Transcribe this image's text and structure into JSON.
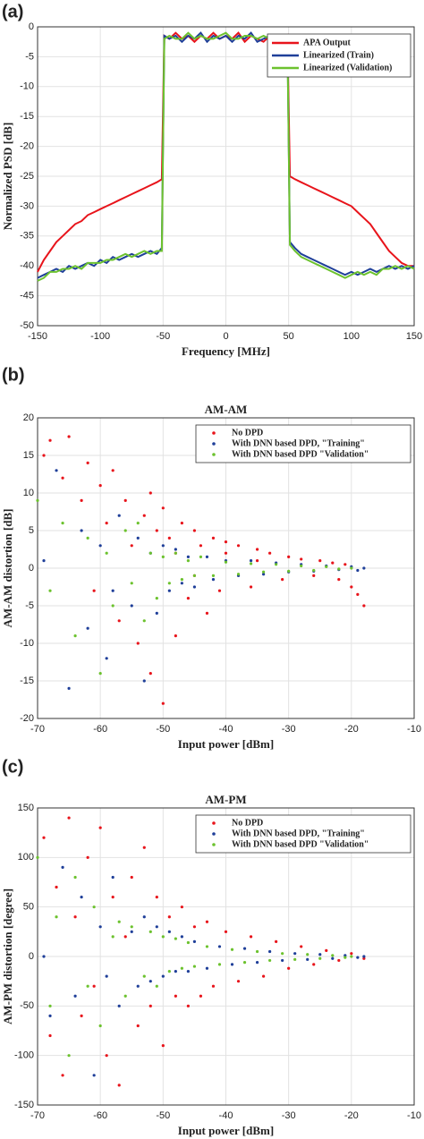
{
  "chart_data": [
    {
      "type": "line",
      "panel_label": "(a)",
      "xlabel": "Frequency [MHz]",
      "ylabel": "Normalized PSD [dB]",
      "xlim": [
        -150,
        150
      ],
      "xticks": [
        -150,
        -100,
        -50,
        0,
        50,
        100,
        150
      ],
      "ylim": [
        -50,
        0
      ],
      "yticks": [
        -50,
        -45,
        -40,
        -35,
        -30,
        -25,
        -20,
        -15,
        -10,
        -5,
        0
      ],
      "grid": true,
      "legend": "upper right",
      "x": [
        -150,
        -145,
        -140,
        -135,
        -130,
        -125,
        -120,
        -115,
        -110,
        -105,
        -100,
        -95,
        -90,
        -85,
        -80,
        -75,
        -70,
        -65,
        -60,
        -55,
        -51,
        -49,
        -45,
        -40,
        -35,
        -30,
        -25,
        -20,
        -15,
        -10,
        -5,
        0,
        5,
        10,
        15,
        20,
        25,
        30,
        35,
        40,
        45,
        49,
        51,
        55,
        60,
        65,
        70,
        75,
        80,
        85,
        90,
        95,
        100,
        105,
        110,
        115,
        120,
        125,
        130,
        135,
        140,
        145,
        150
      ],
      "series": [
        {
          "name": "APA Output",
          "color": "#e8141b",
          "values": [
            -41,
            -39,
            -37.5,
            -36,
            -35,
            -34,
            -33,
            -32.5,
            -31.5,
            -31,
            -30.5,
            -30,
            -29.5,
            -29,
            -28.5,
            -28,
            -27.5,
            -27,
            -26.5,
            -26,
            -25.5,
            -1.5,
            -2,
            -1,
            -2,
            -1.5,
            -2.5,
            -1.5,
            -2,
            -1,
            -2,
            -1.5,
            -2,
            -1,
            -2.5,
            -1.5,
            -2,
            -2.5,
            -1.5,
            -2,
            -2.5,
            -1.5,
            -25,
            -25.5,
            -26,
            -26.5,
            -27,
            -27.5,
            -28,
            -28.5,
            -29,
            -29.5,
            -30,
            -31,
            -32,
            -33,
            -34.5,
            -36,
            -37.5,
            -38.5,
            -39.5,
            -40,
            -40
          ]
        },
        {
          "name": "Linearized (Train)",
          "color": "#1f3f99",
          "values": [
            -42,
            -41.5,
            -41,
            -40.5,
            -41,
            -40,
            -40.5,
            -40,
            -39.5,
            -40,
            -39,
            -39.5,
            -38.5,
            -39,
            -38.5,
            -38,
            -38.5,
            -38,
            -37.5,
            -38,
            -37,
            -1.5,
            -2,
            -1.5,
            -2.5,
            -1.5,
            -2,
            -1,
            -2.5,
            -1.5,
            -2,
            -1.5,
            -2.5,
            -1.5,
            -2,
            -1,
            -2.5,
            -2,
            -1.5,
            -2.5,
            -2,
            -1.5,
            -36,
            -37,
            -38,
            -38.5,
            -39,
            -39.5,
            -40,
            -40.5,
            -41,
            -41.5,
            -41,
            -41.5,
            -41,
            -40.5,
            -41,
            -40.5,
            -40,
            -40.5,
            -40,
            -40.5,
            -40
          ]
        },
        {
          "name": "Linearized (Validation)",
          "color": "#6cc22e",
          "values": [
            -42.5,
            -42,
            -41,
            -41,
            -40.5,
            -40.5,
            -40,
            -40.5,
            -39.5,
            -39.5,
            -39.5,
            -39,
            -39,
            -38.5,
            -38,
            -38.5,
            -38,
            -37.5,
            -38,
            -37.5,
            -37.5,
            -2,
            -1.5,
            -2,
            -2,
            -1,
            -2,
            -1.5,
            -2,
            -2,
            -1.5,
            -1,
            -2,
            -2,
            -1.5,
            -1.5,
            -2,
            -1.5,
            -2,
            -2,
            -1.5,
            -2,
            -36.5,
            -37.5,
            -38.5,
            -39,
            -39.5,
            -40,
            -40.5,
            -41,
            -41.5,
            -42,
            -41.5,
            -41,
            -41.5,
            -41,
            -41.5,
            -40.5,
            -40.5,
            -40,
            -40.5,
            -40,
            -40.5
          ]
        }
      ]
    },
    {
      "type": "scatter",
      "panel_label": "(b)",
      "title": "AM-AM",
      "xlabel": "Input power [dBm]",
      "ylabel": "AM-AM distortion [dB]",
      "xlim": [
        -70,
        -10
      ],
      "xticks": [
        -70,
        -60,
        -50,
        -40,
        -30,
        -20,
        -10
      ],
      "ylim": [
        -20,
        20
      ],
      "yticks": [
        -20,
        -15,
        -10,
        -5,
        0,
        5,
        10,
        15,
        20
      ],
      "grid": true,
      "legend": "upper right",
      "series": [
        {
          "name": "No DPD",
          "color": "#e8141b",
          "x": [
            -69,
            -68,
            -66,
            -65,
            -63,
            -62,
            -61,
            -60,
            -59,
            -58,
            -57,
            -56,
            -55,
            -54,
            -53,
            -52,
            -51,
            -50,
            -50,
            -49,
            -48,
            -47,
            -46,
            -45,
            -44,
            -43,
            -42,
            -41,
            -40,
            -38,
            -36,
            -35,
            -33,
            -31,
            -30,
            -28,
            -26,
            -25,
            -23,
            -22,
            -21,
            -20,
            -19,
            -18,
            -52,
            -48,
            -45,
            -40,
            -35
          ],
          "values": [
            15,
            17,
            12,
            17.5,
            9,
            14,
            -3,
            11,
            6,
            13,
            -7,
            9,
            3,
            -10,
            7,
            -14,
            5,
            -18,
            8,
            4,
            -9,
            6,
            -4,
            5,
            3,
            -6,
            4,
            -3,
            3.5,
            3,
            -2.5,
            2.5,
            2,
            -1.5,
            1.5,
            1.2,
            -1,
            1,
            0.7,
            -1.5,
            0.5,
            -2.5,
            -3.5,
            -5,
            10,
            2,
            -1,
            2,
            1
          ]
        },
        {
          "name": "With DNN based DPD, \"Training\"",
          "color": "#1f3f99",
          "x": [
            -69,
            -67,
            -65,
            -63,
            -62,
            -60,
            -59,
            -58,
            -57,
            -55,
            -54,
            -53,
            -52,
            -51,
            -50,
            -49,
            -48,
            -47,
            -46,
            -45,
            -43,
            -42,
            -40,
            -38,
            -36,
            -34,
            -32,
            -30,
            -28,
            -26,
            -24,
            -22,
            -20,
            -19,
            -18
          ],
          "values": [
            1,
            13,
            -16,
            5,
            -8,
            3,
            -12,
            -3,
            7,
            -5,
            4,
            -15,
            2,
            -6,
            3,
            -3,
            2.5,
            -2,
            1.5,
            -2.5,
            1.5,
            -1.5,
            1,
            -1,
            1,
            -0.8,
            0.7,
            -0.5,
            0.5,
            -0.4,
            0.3,
            -0.2,
            0.2,
            -0.3,
            0
          ]
        },
        {
          "name": "With DNN based DPD \"Validation\"",
          "color": "#6cc22e",
          "x": [
            -70,
            -68,
            -66,
            -64,
            -62,
            -60,
            -59,
            -58,
            -56,
            -55,
            -54,
            -53,
            -52,
            -51,
            -50,
            -49,
            -48,
            -47,
            -46,
            -45,
            -44,
            -42,
            -40,
            -38,
            -36,
            -34,
            -32,
            -30,
            -28,
            -26,
            -24,
            -22,
            -20
          ],
          "values": [
            9,
            -3,
            6,
            -9,
            4,
            -14,
            2,
            -5,
            5,
            -2,
            6,
            -7,
            2,
            -4,
            1.5,
            -2,
            2,
            -1.5,
            1,
            -1,
            1.5,
            -1,
            0.8,
            -0.8,
            0.6,
            -0.5,
            0.5,
            -0.4,
            0.3,
            -0.3,
            0.2,
            -0.1,
            0
          ]
        }
      ]
    },
    {
      "type": "scatter",
      "panel_label": "(c)",
      "title": "AM-PM",
      "xlabel": "Input power [dBm]",
      "ylabel": "AM-PM distortion [degree]",
      "xlim": [
        -70,
        -10
      ],
      "xticks": [
        -70,
        -60,
        -50,
        -40,
        -30,
        -20,
        -10
      ],
      "ylim": [
        -150,
        150
      ],
      "yticks": [
        -150,
        -100,
        -50,
        0,
        50,
        100,
        150
      ],
      "grid": true,
      "legend": "upper right",
      "series": [
        {
          "name": "No DPD",
          "color": "#e8141b",
          "x": [
            -69,
            -68,
            -67,
            -66,
            -65,
            -64,
            -63,
            -62,
            -61,
            -60,
            -59,
            -58,
            -57,
            -56,
            -55,
            -54,
            -53,
            -52,
            -51,
            -50,
            -49,
            -48,
            -47,
            -46,
            -45,
            -44,
            -43,
            -42,
            -40,
            -38,
            -36,
            -34,
            -32,
            -30,
            -28,
            -26,
            -24,
            -22,
            -20,
            -18
          ],
          "values": [
            120,
            -80,
            70,
            -120,
            140,
            40,
            -60,
            100,
            -30,
            130,
            -100,
            60,
            -130,
            20,
            80,
            -70,
            110,
            -50,
            60,
            -90,
            40,
            -40,
            50,
            -50,
            30,
            -40,
            35,
            -30,
            25,
            -25,
            20,
            -20,
            15,
            -12,
            10,
            -8,
            6,
            -4,
            3,
            -2
          ]
        },
        {
          "name": "With DNN based DPD, \"Training\"",
          "color": "#1f3f99",
          "x": [
            -69,
            -68,
            -66,
            -64,
            -63,
            -61,
            -60,
            -59,
            -58,
            -57,
            -55,
            -54,
            -53,
            -52,
            -51,
            -50,
            -49,
            -48,
            -47,
            -46,
            -45,
            -43,
            -41,
            -39,
            -37,
            -35,
            -33,
            -31,
            -29,
            -27,
            -25,
            -23,
            -21,
            -19,
            -18
          ],
          "values": [
            0,
            -60,
            90,
            -40,
            60,
            -120,
            30,
            -20,
            80,
            -50,
            25,
            -30,
            40,
            -25,
            30,
            -20,
            25,
            -15,
            20,
            -15,
            15,
            -12,
            10,
            -8,
            8,
            -6,
            5,
            -4,
            3,
            -3,
            2,
            -2,
            1,
            -1,
            0
          ]
        },
        {
          "name": "With DNN based DPD \"Validation\"",
          "color": "#6cc22e",
          "x": [
            -70,
            -68,
            -67,
            -65,
            -64,
            -62,
            -61,
            -60,
            -58,
            -57,
            -56,
            -55,
            -53,
            -52,
            -51,
            -50,
            -49,
            -48,
            -47,
            -46,
            -45,
            -43,
            -41,
            -39,
            -37,
            -35,
            -33,
            -31,
            -29,
            -27,
            -25,
            -23,
            -21,
            -20
          ],
          "values": [
            100,
            -50,
            40,
            -100,
            80,
            -30,
            50,
            -70,
            20,
            35,
            -40,
            30,
            -20,
            25,
            -30,
            20,
            -15,
            18,
            -12,
            14,
            -10,
            10,
            -8,
            7,
            -6,
            5,
            -4,
            3,
            -3,
            2,
            -2,
            1,
            -1,
            0
          ]
        }
      ]
    }
  ]
}
